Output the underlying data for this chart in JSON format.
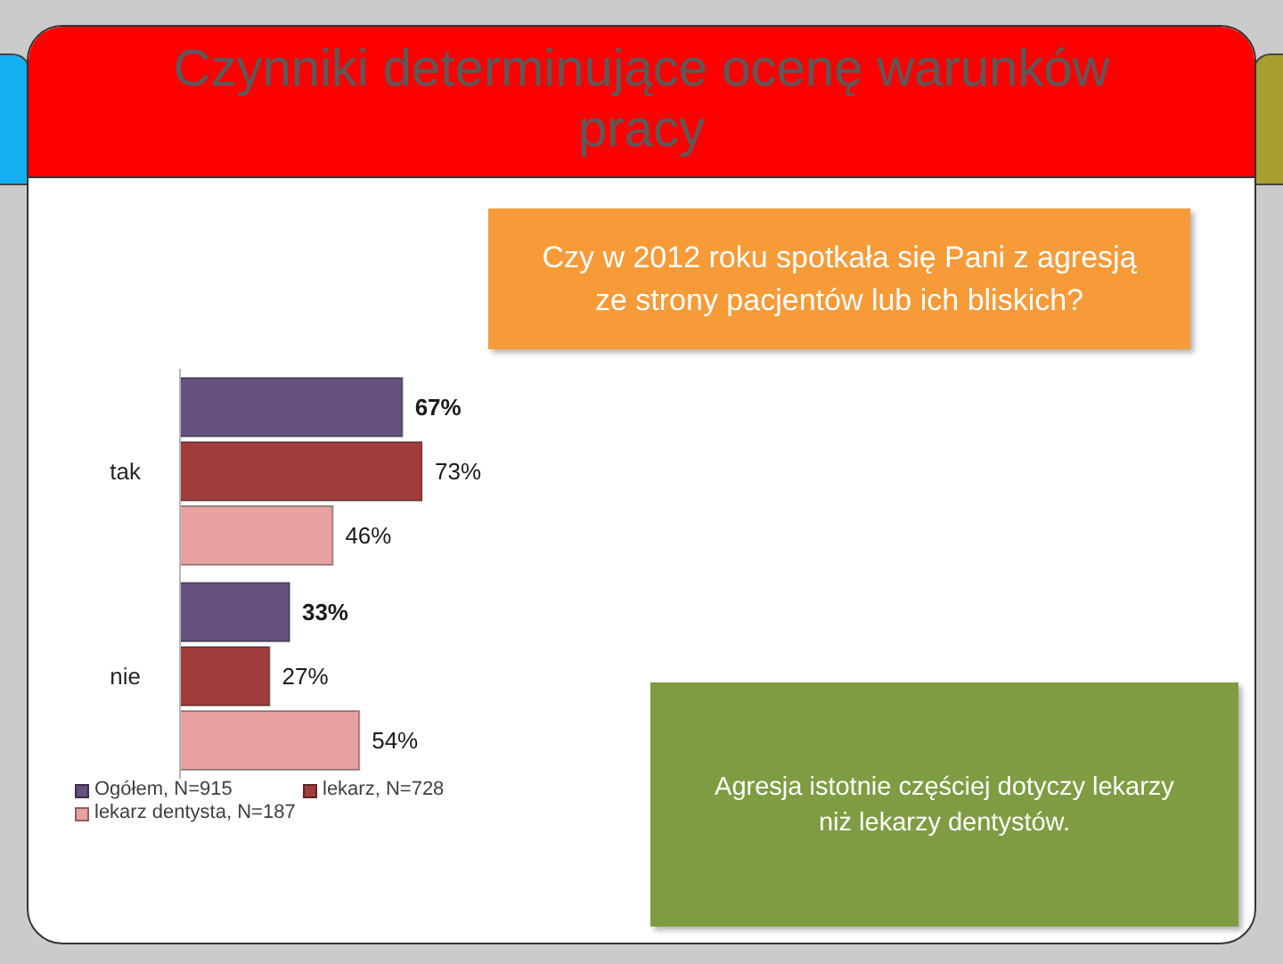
{
  "chart_data": {
    "type": "bar",
    "orientation": "horizontal",
    "title": "Czynniki determinujące ocenę warunków pracy",
    "subtitle": "Czy w 2012 roku spotkała się Pani z agresją ze strony pacjentów lub ich bliskich?",
    "annotations": [
      "Agresja istotnie częściej dotyczy lekarzy niż lekarzy dentystów."
    ],
    "categories": [
      "tak",
      "nie"
    ],
    "series": [
      {
        "name": "Ogółem, N=915",
        "color": "#65507f",
        "values": [
          67,
          33
        ],
        "value_labels": [
          "67%",
          "33%"
        ]
      },
      {
        "name": "lekarz, N=728",
        "color": "#a03c3c",
        "values": [
          73,
          27
        ],
        "value_labels": [
          "73%",
          "27%"
        ]
      },
      {
        "name": "lekarz dentysta, N=187",
        "color": "#e6a1a0",
        "values": [
          46,
          54
        ],
        "value_labels": [
          "46%",
          "54%"
        ]
      }
    ],
    "legend": "bottom",
    "tick_labels": "y"
  }
}
